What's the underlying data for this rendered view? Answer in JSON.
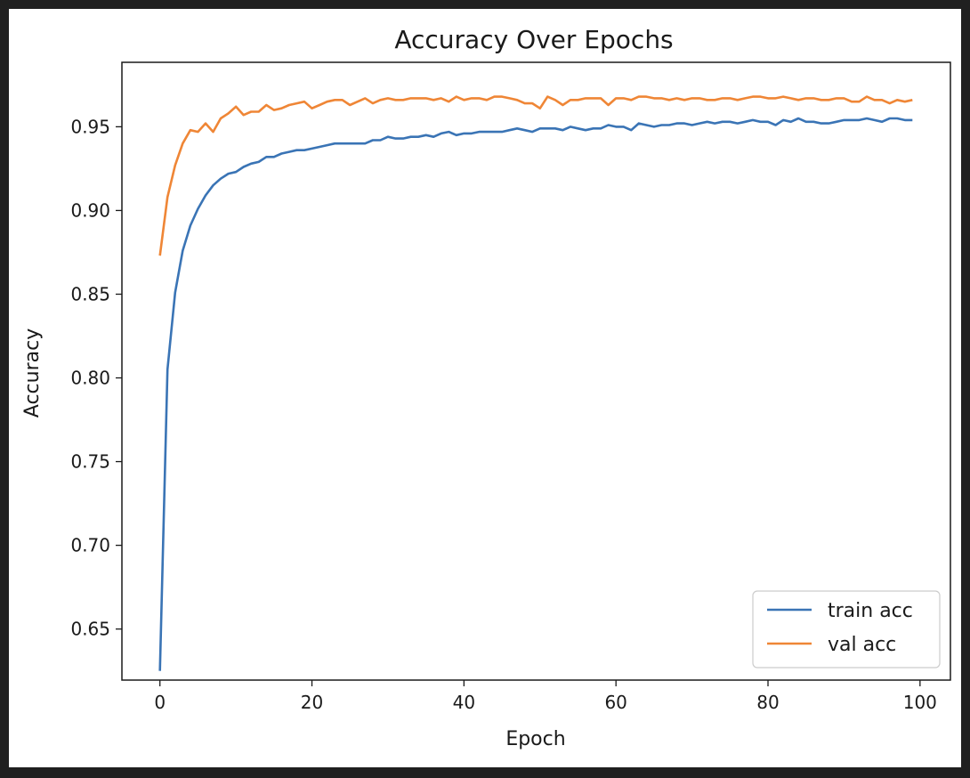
{
  "chart_data": {
    "type": "line",
    "title": "Accuracy Over Epochs",
    "xlabel": "Epoch",
    "ylabel": "Accuracy",
    "xlim": [
      -5,
      104
    ],
    "ylim": [
      0.6195,
      0.9885
    ],
    "xticks": [
      0,
      20,
      40,
      60,
      80,
      100
    ],
    "yticks": [
      0.65,
      0.7,
      0.75,
      0.8,
      0.85,
      0.9,
      0.95
    ],
    "ytick_labels": [
      "0.65",
      "0.70",
      "0.75",
      "0.80",
      "0.85",
      "0.90",
      "0.95"
    ],
    "grid": false,
    "legend_position": "lower-right",
    "series": [
      {
        "name": "train acc",
        "color": "#3a74b5",
        "x": [
          0,
          1,
          2,
          3,
          4,
          5,
          6,
          7,
          8,
          9,
          10,
          11,
          12,
          13,
          14,
          15,
          16,
          17,
          18,
          19,
          20,
          21,
          22,
          23,
          24,
          25,
          26,
          27,
          28,
          29,
          30,
          31,
          32,
          33,
          34,
          35,
          36,
          37,
          38,
          39,
          40,
          41,
          42,
          43,
          44,
          45,
          46,
          47,
          48,
          49,
          50,
          51,
          52,
          53,
          54,
          55,
          56,
          57,
          58,
          59,
          60,
          61,
          62,
          63,
          64,
          65,
          66,
          67,
          68,
          69,
          70,
          71,
          72,
          73,
          74,
          75,
          76,
          77,
          78,
          79,
          80,
          81,
          82,
          83,
          84,
          85,
          86,
          87,
          88,
          89,
          90,
          91,
          92,
          93,
          94,
          95,
          96,
          97,
          98,
          99
        ],
        "values": [
          0.625,
          0.805,
          0.851,
          0.876,
          0.891,
          0.901,
          0.909,
          0.915,
          0.919,
          0.922,
          0.923,
          0.926,
          0.928,
          0.929,
          0.932,
          0.932,
          0.934,
          0.935,
          0.936,
          0.936,
          0.937,
          0.938,
          0.939,
          0.94,
          0.94,
          0.94,
          0.94,
          0.94,
          0.942,
          0.942,
          0.944,
          0.943,
          0.943,
          0.944,
          0.944,
          0.945,
          0.944,
          0.946,
          0.947,
          0.945,
          0.946,
          0.946,
          0.947,
          0.947,
          0.947,
          0.947,
          0.948,
          0.949,
          0.948,
          0.947,
          0.949,
          0.949,
          0.949,
          0.948,
          0.95,
          0.949,
          0.948,
          0.949,
          0.949,
          0.951,
          0.95,
          0.95,
          0.948,
          0.952,
          0.951,
          0.95,
          0.951,
          0.951,
          0.952,
          0.952,
          0.951,
          0.952,
          0.953,
          0.952,
          0.953,
          0.953,
          0.952,
          0.953,
          0.954,
          0.953,
          0.953,
          0.951,
          0.954,
          0.953,
          0.955,
          0.953,
          0.953,
          0.952,
          0.952,
          0.953,
          0.954,
          0.954,
          0.954,
          0.955,
          0.954,
          0.953,
          0.955,
          0.955,
          0.954,
          0.954
        ]
      },
      {
        "name": "val acc",
        "color": "#ef8636",
        "x": [
          0,
          1,
          2,
          3,
          4,
          5,
          6,
          7,
          8,
          9,
          10,
          11,
          12,
          13,
          14,
          15,
          16,
          17,
          18,
          19,
          20,
          21,
          22,
          23,
          24,
          25,
          26,
          27,
          28,
          29,
          30,
          31,
          32,
          33,
          34,
          35,
          36,
          37,
          38,
          39,
          40,
          41,
          42,
          43,
          44,
          45,
          46,
          47,
          48,
          49,
          50,
          51,
          52,
          53,
          54,
          55,
          56,
          57,
          58,
          59,
          60,
          61,
          62,
          63,
          64,
          65,
          66,
          67,
          68,
          69,
          70,
          71,
          72,
          73,
          74,
          75,
          76,
          77,
          78,
          79,
          80,
          81,
          82,
          83,
          84,
          85,
          86,
          87,
          88,
          89,
          90,
          91,
          92,
          93,
          94,
          95,
          96,
          97,
          98,
          99
        ],
        "values": [
          0.873,
          0.908,
          0.927,
          0.94,
          0.948,
          0.947,
          0.952,
          0.947,
          0.955,
          0.958,
          0.962,
          0.957,
          0.959,
          0.959,
          0.963,
          0.96,
          0.961,
          0.963,
          0.964,
          0.965,
          0.961,
          0.963,
          0.965,
          0.966,
          0.966,
          0.963,
          0.965,
          0.967,
          0.964,
          0.966,
          0.967,
          0.966,
          0.966,
          0.967,
          0.967,
          0.967,
          0.966,
          0.967,
          0.965,
          0.968,
          0.966,
          0.967,
          0.967,
          0.966,
          0.968,
          0.968,
          0.967,
          0.966,
          0.964,
          0.964,
          0.961,
          0.968,
          0.966,
          0.963,
          0.966,
          0.966,
          0.967,
          0.967,
          0.967,
          0.963,
          0.967,
          0.967,
          0.966,
          0.968,
          0.968,
          0.967,
          0.967,
          0.966,
          0.967,
          0.966,
          0.967,
          0.967,
          0.966,
          0.966,
          0.967,
          0.967,
          0.966,
          0.967,
          0.968,
          0.968,
          0.967,
          0.967,
          0.968,
          0.967,
          0.966,
          0.967,
          0.967,
          0.966,
          0.966,
          0.967,
          0.967,
          0.965,
          0.965,
          0.968,
          0.966,
          0.966,
          0.964,
          0.966,
          0.965,
          0.966
        ]
      }
    ]
  }
}
